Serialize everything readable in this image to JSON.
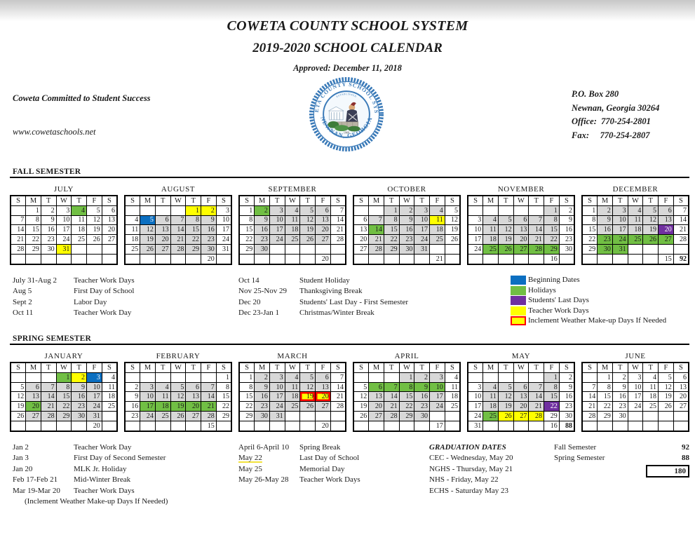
{
  "page": {
    "title1": "COWETA COUNTY SCHOOL SYSTEM",
    "title2": "2019-2020 SCHOOL CALENDAR",
    "approved": "Approved: December 11, 2018",
    "motto": "Coweta Committed to Student Success",
    "website": "www.cowetaschools.net",
    "address_lines": [
      "P.O. Box 280",
      "Newnan, Georgia 30264",
      "Office:  770-254-2801",
      "Fax:     770-254-2807"
    ]
  },
  "logo": {
    "arc_top": "COWETA COUNTY SCHOOL SYSTEM",
    "arc_bottom": "NEWNAN, GEORGIA",
    "established": "ESTABLISHED",
    "year": "1969"
  },
  "colors": {
    "beginning": "#0b6fc1",
    "holiday": "#71bf44",
    "last_day": "#7030a0",
    "teacher_work": "#ffff00",
    "school_day": "#d8d8d8",
    "inclement_border": "#ff0000"
  },
  "day_headers": [
    "S",
    "M",
    "T",
    "W",
    "T",
    "F",
    "S"
  ],
  "fall": {
    "heading": "FALL SEMESTER",
    "months": [
      {
        "name": "JULY",
        "weeks": [
          [
            "",
            "1",
            "2",
            "3",
            "4 gr",
            "5",
            "6"
          ],
          [
            "7",
            "8",
            "9",
            "10",
            "11",
            "12",
            "13"
          ],
          [
            "14",
            "15",
            "16",
            "17",
            "18",
            "19",
            "20"
          ],
          [
            "21",
            "22",
            "23",
            "24",
            "25",
            "26",
            "27"
          ],
          [
            "28",
            "29",
            "30",
            "31 y",
            "",
            "",
            ""
          ],
          [
            "",
            "",
            "",
            "",
            "",
            "",
            ""
          ]
        ]
      },
      {
        "name": "AUGUST",
        "weeks": [
          [
            "",
            "",
            "",
            "",
            "1 y",
            "2 y",
            "3"
          ],
          [
            "4",
            "5 b",
            "6 g",
            "7 g",
            "8 g",
            "9 g",
            "10"
          ],
          [
            "11",
            "12 g",
            "13 g",
            "14 g",
            "15 g",
            "16 g",
            "17"
          ],
          [
            "18",
            "19 g",
            "20 g",
            "21 g",
            "22 g",
            "23 g",
            "24"
          ],
          [
            "25",
            "26 g",
            "27 g",
            "28 g",
            "29 g",
            "30 g",
            "31"
          ],
          [
            "",
            "",
            "",
            "",
            "",
            "20",
            ""
          ]
        ]
      },
      {
        "name": "SEPTEMBER",
        "weeks": [
          [
            "1",
            "2 gr",
            "3 g",
            "4 g",
            "5 g",
            "6 g",
            "7"
          ],
          [
            "8",
            "9 g",
            "10 g",
            "11 g",
            "12 g",
            "13 g",
            "14"
          ],
          [
            "15",
            "16 g",
            "17 g",
            "18 g",
            "19 g",
            "20 g",
            "21"
          ],
          [
            "22",
            "23 g",
            "24 g",
            "25 g",
            "26 g",
            "27 g",
            "28"
          ],
          [
            "29",
            "30 g",
            "",
            "",
            "",
            "",
            ""
          ],
          [
            "",
            "",
            "",
            "",
            "",
            "20",
            ""
          ]
        ]
      },
      {
        "name": "OCTOBER",
        "weeks": [
          [
            "",
            "",
            "1 g",
            "2 g",
            "3 g",
            "4 g",
            "5"
          ],
          [
            "6",
            "7 g",
            "8 g",
            "9 g",
            "10 g",
            "11 y",
            "12"
          ],
          [
            "13",
            "14 gr",
            "15 g",
            "16 g",
            "17 g",
            "18 g",
            "19"
          ],
          [
            "20",
            "21 g",
            "22 g",
            "23 g",
            "24 g",
            "25 g",
            "26"
          ],
          [
            "27",
            "28 g",
            "29 g",
            "30 g",
            "31 g",
            "",
            ""
          ],
          [
            "",
            "",
            "",
            "",
            "",
            "21",
            ""
          ]
        ]
      },
      {
        "name": "NOVEMBER",
        "weeks": [
          [
            "",
            "",
            "",
            "",
            "",
            "1 g",
            "2"
          ],
          [
            "3",
            "4 g",
            "5 g",
            "6 g",
            "7 g",
            "8 g",
            "9"
          ],
          [
            "10",
            "11 g",
            "12 g",
            "13 g",
            "14 g",
            "15 g",
            "16"
          ],
          [
            "17",
            "18 g",
            "19 g",
            "20 g",
            "21 g",
            "22 g",
            "23"
          ],
          [
            "24",
            "25 gr",
            "26 gr",
            "27 gr",
            "28 gr",
            "29 gr",
            "30"
          ],
          [
            "",
            "",
            "",
            "",
            "",
            "16",
            ""
          ]
        ]
      },
      {
        "name": "DECEMBER",
        "weeks": [
          [
            "1",
            "2 g",
            "3 g",
            "4 g",
            "5 g",
            "6 g",
            "7"
          ],
          [
            "8",
            "9 g",
            "10 g",
            "11 g",
            "12 g",
            "13 g",
            "14"
          ],
          [
            "15",
            "16 g",
            "17 g",
            "18 g",
            "19 g",
            "20 p",
            "21"
          ],
          [
            "22",
            "23 gr",
            "24 gr",
            "25 gr",
            "26 gr",
            "27 gr",
            "28"
          ],
          [
            "29",
            "30 gr",
            "31 gr",
            "",
            "",
            "",
            ""
          ],
          [
            "",
            "",
            "",
            "",
            "",
            "15",
            "92 bd"
          ]
        ]
      }
    ],
    "notes_col1": [
      [
        "July 31-Aug 2",
        "Teacher Work Days"
      ],
      [
        "Aug 5",
        "First Day of School"
      ],
      [
        "Sept 2",
        "Labor Day"
      ],
      [
        "Oct 11",
        "Teacher Work Day"
      ]
    ],
    "notes_col2": [
      [
        "Oct 14",
        "Student Holiday"
      ],
      [
        "Nov 25-Nov 29",
        "Thanksgiving Break"
      ],
      [
        "Dec 20",
        "Students' Last Day - First Semester"
      ],
      [
        "Dec 23-Jan 1",
        "Christmas/Winter Break"
      ]
    ]
  },
  "legend": {
    "items": [
      {
        "color": "#0b6fc1",
        "red": false,
        "label": "Beginning Dates"
      },
      {
        "color": "#71bf44",
        "red": false,
        "label": "Holidays"
      },
      {
        "color": "#7030a0",
        "red": false,
        "label": "Students' Last Days"
      },
      {
        "color": "#ffff00",
        "red": false,
        "label": "Teacher Work Days"
      },
      {
        "color": "#ffff00",
        "red": true,
        "label": "Inclement Weather Make-up Days If Needed"
      }
    ]
  },
  "spring": {
    "heading": "SPRING SEMESTER",
    "months": [
      {
        "name": "JANUARY",
        "weeks": [
          [
            "",
            "",
            "",
            "1 gr",
            "2 y",
            "3 b",
            "4"
          ],
          [
            "5",
            "6 g",
            "7 g",
            "8 g",
            "9 g",
            "10 g",
            "11"
          ],
          [
            "12",
            "13 g",
            "14 g",
            "15 g",
            "16 g",
            "17 g",
            "18"
          ],
          [
            "19",
            "20 gr",
            "21 g",
            "22 g",
            "23 g",
            "24 g",
            "25"
          ],
          [
            "26",
            "27 g",
            "28 g",
            "29 g",
            "30 g",
            "31 g",
            ""
          ],
          [
            "",
            "",
            "",
            "",
            "",
            "20",
            ""
          ]
        ]
      },
      {
        "name": "FEBRUARY",
        "weeks": [
          [
            "",
            "",
            "",
            "",
            "",
            "",
            "1"
          ],
          [
            "2",
            "3 g",
            "4 g",
            "5 g",
            "6 g",
            "7 g",
            "8"
          ],
          [
            "9",
            "10 g",
            "11 g",
            "12 g",
            "13 g",
            "14 g",
            "15"
          ],
          [
            "16",
            "17 gr",
            "18 gr",
            "19 gr",
            "20 gr",
            "21 gr",
            "22"
          ],
          [
            "23",
            "24 g",
            "25 g",
            "26 g",
            "27 g",
            "28 g",
            "29"
          ],
          [
            "",
            "",
            "",
            "",
            "",
            "15",
            ""
          ]
        ]
      },
      {
        "name": "MARCH",
        "weeks": [
          [
            "1",
            "2 g",
            "3 g",
            "4 g",
            "5 g",
            "6 g",
            "7"
          ],
          [
            "8",
            "9 g",
            "10 g",
            "11 g",
            "12 g",
            "13 g",
            "14"
          ],
          [
            "15",
            "16 g",
            "17 g",
            "18 g",
            "19 yr",
            "20 yr",
            "21"
          ],
          [
            "22",
            "23 g",
            "24 g",
            "25 g",
            "26 g",
            "27 g",
            "28"
          ],
          [
            "29",
            "30 g",
            "31 g",
            "",
            "",
            "",
            ""
          ],
          [
            "",
            "",
            "",
            "",
            "",
            "20",
            ""
          ]
        ]
      },
      {
        "name": "APRIL",
        "weeks": [
          [
            "",
            "",
            "",
            "1 g",
            "2 g",
            "3 g",
            "4"
          ],
          [
            "5",
            "6 gr",
            "7 gr",
            "8 gr",
            "9 gr",
            "10 gr",
            "11"
          ],
          [
            "12",
            "13 g",
            "14 g",
            "15 g",
            "16 g",
            "17 g",
            "18"
          ],
          [
            "19",
            "20 g",
            "21 g",
            "22 g",
            "23 g",
            "24 g",
            "25"
          ],
          [
            "26",
            "27 g",
            "28 g",
            "29 g",
            "30 g",
            "",
            ""
          ],
          [
            "",
            "",
            "",
            "",
            "",
            "17",
            ""
          ]
        ]
      },
      {
        "name": "MAY",
        "weeks": [
          [
            "",
            "",
            "",
            "",
            "",
            "1 g",
            "2"
          ],
          [
            "3",
            "4 g",
            "5 g",
            "6 g",
            "7 g",
            "8 g",
            "9"
          ],
          [
            "10",
            "11 g",
            "12 g",
            "13 g",
            "14 g",
            "15 g",
            "16"
          ],
          [
            "17",
            "18 g",
            "19 g",
            "20 g",
            "21 g",
            "22 p",
            "23"
          ],
          [
            "24",
            "25 gr",
            "26 y",
            "27 y",
            "28 y",
            "29",
            "30"
          ],
          [
            "31",
            "",
            "",
            "",
            "",
            "16",
            "88 bd"
          ]
        ]
      },
      {
        "name": "JUNE",
        "weeks": [
          [
            "",
            "1",
            "2",
            "3",
            "4",
            "5",
            "6"
          ],
          [
            "7",
            "8",
            "9",
            "10",
            "11",
            "12",
            "13"
          ],
          [
            "14",
            "15",
            "16",
            "17",
            "18",
            "19",
            "20"
          ],
          [
            "21",
            "22",
            "23",
            "24",
            "25",
            "26",
            "27"
          ],
          [
            "28",
            "29",
            "30",
            "",
            "",
            "",
            ""
          ],
          [
            "",
            "",
            "",
            "",
            "",
            "",
            ""
          ]
        ]
      }
    ],
    "notes_col1": [
      [
        "Jan 2",
        "Teacher Work Day"
      ],
      [
        "Jan 3",
        "First Day of Second Semester"
      ],
      [
        "Jan 20",
        "MLK Jr. Holiday"
      ],
      [
        "Feb 17-Feb 21",
        "Mid-Winter Break"
      ],
      [
        "Mar 19-Mar 20",
        "Teacher Work Days"
      ]
    ],
    "footnote": "(Inclement Weather Make-up Days If Needed)",
    "notes_col2": [
      [
        "April 6-April 10",
        "Spring Break"
      ],
      [
        "May 22",
        "Last Day of School",
        "u"
      ],
      [
        "May 25",
        "Memorial Day"
      ],
      [
        "May 26-May 28",
        "Teacher Work Days"
      ]
    ]
  },
  "graduation": {
    "title": "GRADUATION DATES",
    "items": [
      "CEC - Wednesday, May 20",
      "NGHS - Thursday, May 21",
      "NHS - Friday, May 22",
      "ECHS - Saturday May 23"
    ]
  },
  "totals": {
    "rows": [
      [
        "Fall Semester",
        "92"
      ],
      [
        "Spring Semester",
        "88"
      ]
    ],
    "total": "180"
  }
}
